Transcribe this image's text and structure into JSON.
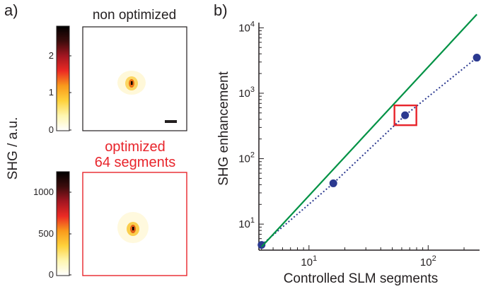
{
  "panel_a": {
    "panel_label": "a)",
    "ylabel": "SHG / a.u.",
    "top_image": {
      "title": "non optimized",
      "colorbar_ticks": [
        "0",
        "1",
        "2"
      ],
      "frame_color": "#231f20"
    },
    "bottom_image": {
      "title_line1": "optimized",
      "title_line2": "64 segments",
      "colorbar_ticks": [
        "0",
        "500",
        "1000"
      ],
      "frame_color": "#e8242b"
    },
    "colormap": [
      "#ffffff",
      "#fff6b0",
      "#ffd23c",
      "#f99a1c",
      "#ec2a24",
      "#a31621",
      "#3c0c0c",
      "#000000"
    ]
  },
  "panel_b": {
    "panel_label": "b)"
  },
  "chart_data": {
    "type": "scatter",
    "xlabel": "Controlled SLM segments",
    "ylabel": "SHG enhancement",
    "xscale": "log",
    "yscale": "log",
    "xlim": [
      3.8,
      270
    ],
    "ylim": [
      4,
      12000
    ],
    "xticks": [
      10,
      100
    ],
    "yticks": [
      10,
      100,
      1000,
      10000
    ],
    "xtick_labels": [
      {
        "base": "10",
        "exp": "1"
      },
      {
        "base": "10",
        "exp": "2"
      }
    ],
    "ytick_labels": [
      {
        "base": "10",
        "exp": "1"
      },
      {
        "base": "10",
        "exp": "2"
      },
      {
        "base": "10",
        "exp": "3"
      },
      {
        "base": "10",
        "exp": "4"
      }
    ],
    "series": [
      {
        "kind": "points",
        "style": "dotted-line-markers",
        "color": "#2b3990",
        "x": [
          4,
          16,
          64,
          256
        ],
        "y": [
          4.8,
          42,
          460,
          3500
        ]
      },
      {
        "kind": "line",
        "style": "solid",
        "color": "#009245",
        "x": [
          4,
          256
        ],
        "y": [
          4.5,
          16000
        ]
      }
    ],
    "highlight": {
      "x": 64,
      "y": 460,
      "color": "#e8242b"
    },
    "grid": false
  }
}
